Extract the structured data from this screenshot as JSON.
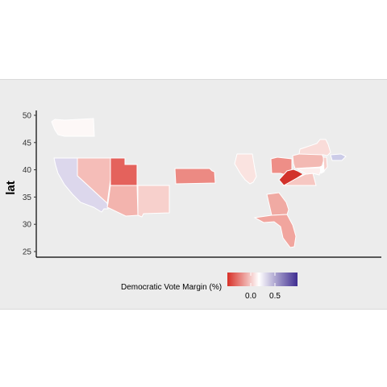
{
  "chart_data": {
    "type": "map",
    "title": "",
    "ylabel": "lat",
    "xlabel": "",
    "y_ticks": [
      25,
      30,
      35,
      40,
      45,
      50
    ],
    "legend": {
      "title": "Democratic Vote Margin (%)",
      "ticks": [
        "0.0",
        "0.5"
      ],
      "colors": [
        "#d73027",
        "#ffffff",
        "#3f2d91"
      ],
      "placement": "bottom"
    },
    "regions": [
      {
        "name": "Washington",
        "margin": 0.01,
        "color": "#fdf8f7"
      },
      {
        "name": "California",
        "margin": 0.15,
        "color": "#dcd7ec"
      },
      {
        "name": "Nevada",
        "margin": -0.12,
        "color": "#f5bdb8"
      },
      {
        "name": "Utah",
        "margin": -0.45,
        "color": "#e4625c"
      },
      {
        "name": "Arizona",
        "margin": -0.15,
        "color": "#f3b4ae"
      },
      {
        "name": "New Mexico",
        "margin": -0.1,
        "color": "#f7d0cc"
      },
      {
        "name": "Kansas",
        "margin": -0.3,
        "color": "#ec8a83"
      },
      {
        "name": "Illinois",
        "margin": -0.05,
        "color": "#fae3e0"
      },
      {
        "name": "Georgia",
        "margin": -0.18,
        "color": "#f0aaa3"
      },
      {
        "name": "Florida",
        "margin": -0.2,
        "color": "#f1a59e"
      },
      {
        "name": "Ohio",
        "margin": -0.28,
        "color": "#ee8e87"
      },
      {
        "name": "Pennsylvania",
        "margin": -0.14,
        "color": "#f3b9b3"
      },
      {
        "name": "New York",
        "margin": -0.06,
        "color": "#f9dcd9"
      },
      {
        "name": "Massachusetts",
        "margin": 0.15,
        "color": "#cccce8"
      },
      {
        "name": "West Virginia",
        "margin": -0.7,
        "color": "#d2322b"
      },
      {
        "name": "Virginia",
        "margin": -0.12,
        "color": "#f6c7c2"
      },
      {
        "name": "Maryland",
        "margin": -0.02,
        "color": "#fcefee"
      },
      {
        "name": "New Jersey",
        "margin": -0.1,
        "color": "#f7cfcb"
      },
      {
        "name": "Delaware",
        "margin": 0.0,
        "color": "#ffffff"
      }
    ]
  }
}
